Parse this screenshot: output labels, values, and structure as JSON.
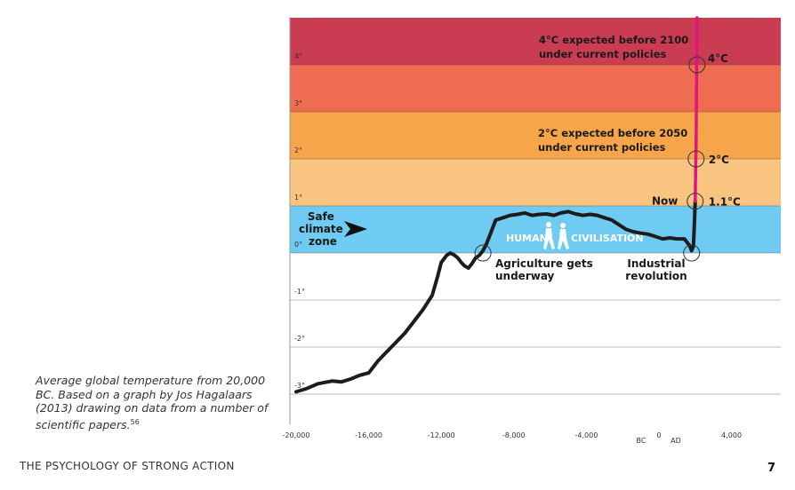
{
  "caption": {
    "text": "Average global temperature from 20,000 BC. Based on a graph by Jos Hagalaars (2013) drawing on data from a number of scientific papers.",
    "footnote": "56"
  },
  "footer": {
    "title": "THE PSYCHOLOGY OF STRONG ACTION",
    "page_number": "7"
  },
  "colors": {
    "band_4_5": "#c93c52",
    "band_3_4": "#ee6c4f",
    "band_2_3": "#f7a54a",
    "band_1_2": "#f9c47f",
    "safe_zone": "#6fcbf1",
    "line": "#1c1c1c",
    "projection": "#e1157f",
    "human_text": "#ffffff"
  },
  "chart_data": {
    "type": "line",
    "title": "",
    "xlabel": "",
    "ylabel": "",
    "xlim": [
      -20000,
      6500
    ],
    "ylim": [
      -3.1,
      5
    ],
    "x_ticks": [
      {
        "value": -20000,
        "label": "-20,000"
      },
      {
        "value": -16000,
        "label": "-16,000"
      },
      {
        "value": -12000,
        "label": "-12,000"
      },
      {
        "value": -8000,
        "label": "-8,000"
      },
      {
        "value": -4000,
        "label": "-4,000"
      },
      {
        "value": 0,
        "label": "0"
      },
      {
        "value": 4000,
        "label": "4,000"
      }
    ],
    "era_labels": {
      "bc": "BC",
      "ad": "AD"
    },
    "y_ticks": [
      {
        "value": 4,
        "label": "4°"
      },
      {
        "value": 3,
        "label": "3°"
      },
      {
        "value": 2,
        "label": "2°"
      },
      {
        "value": 1,
        "label": "1°"
      },
      {
        "value": 0,
        "label": "0°"
      },
      {
        "value": -1,
        "label": "-1°"
      },
      {
        "value": -2,
        "label": "-2°"
      },
      {
        "value": -3,
        "label": "-3°"
      }
    ],
    "bands": [
      {
        "from": 4,
        "to": 5,
        "color": "#c93c52"
      },
      {
        "from": 3,
        "to": 4,
        "color": "#ee6c4f"
      },
      {
        "from": 2,
        "to": 3,
        "color": "#f7a54a"
      },
      {
        "from": 1,
        "to": 2,
        "color": "#f9c47f"
      },
      {
        "from": 0,
        "to": 1,
        "color": "#6fcbf1"
      }
    ],
    "series": [
      {
        "x": [
          -20000,
          -19400,
          -18800,
          -18000,
          -17500,
          -17000,
          -16500,
          -16000,
          -15500,
          -15000,
          -14500,
          -14000,
          -13500,
          -13000,
          -12500,
          -12200,
          -12000,
          -11700,
          -11500,
          -11300,
          -11100,
          -10900,
          -10700,
          -10500,
          -10300,
          -10100,
          -9900,
          -9700,
          -9500,
          -9300,
          -9000,
          -8600,
          -8200,
          -7800,
          -7400,
          -7000,
          -6600,
          -6200,
          -5800,
          -5400,
          -5000,
          -4600,
          -4200,
          -3800,
          -3400,
          -3000,
          -2600,
          -2200,
          -1800,
          -1400,
          -1000,
          -600,
          -200,
          200,
          600,
          1000,
          1400,
          1700,
          1800,
          1900,
          1950,
          2000
        ],
        "values": [
          -2.95,
          -2.88,
          -2.78,
          -2.72,
          -2.74,
          -2.68,
          -2.6,
          -2.55,
          -2.3,
          -2.1,
          -1.9,
          -1.7,
          -1.45,
          -1.2,
          -0.9,
          -0.5,
          -0.2,
          -0.05,
          0.0,
          -0.04,
          -0.1,
          -0.2,
          -0.28,
          -0.32,
          -0.22,
          -0.1,
          -0.05,
          0.05,
          0.2,
          0.4,
          0.7,
          0.75,
          0.8,
          0.82,
          0.85,
          0.8,
          0.82,
          0.83,
          0.8,
          0.85,
          0.88,
          0.83,
          0.8,
          0.82,
          0.8,
          0.75,
          0.7,
          0.6,
          0.5,
          0.45,
          0.42,
          0.4,
          0.35,
          0.3,
          0.32,
          0.3,
          0.3,
          0.15,
          0.05,
          0.15,
          0.6,
          1.1
        ]
      }
    ],
    "projection": {
      "x": [
        2000,
        2010,
        2025,
        2050,
        2100
      ],
      "values": [
        1.1,
        1.4,
        1.8,
        2.3,
        5.0
      ]
    },
    "markers": [
      {
        "x": -9700,
        "value": 0.0,
        "label": "Agriculture gets underway"
      },
      {
        "x": 1800,
        "value": 0.0,
        "label": "Industrial revolution"
      },
      {
        "x": 2000,
        "value": 1.1,
        "label": "1.1°C",
        "note": "Now"
      },
      {
        "x": 2050,
        "value": 2.0,
        "label": "2°C"
      },
      {
        "x": 2100,
        "value": 4.0,
        "label": "4°C"
      }
    ],
    "annotations": [
      {
        "lines": [
          "4°C expected before 2100",
          "under current policies"
        ]
      },
      {
        "lines": [
          "2°C expected before 2050",
          "under current policies"
        ]
      }
    ],
    "safe_zone_label": [
      "Safe",
      "climate",
      "zone"
    ],
    "human_label": {
      "left": "HUMAN",
      "right": "CIVILISATION"
    }
  }
}
